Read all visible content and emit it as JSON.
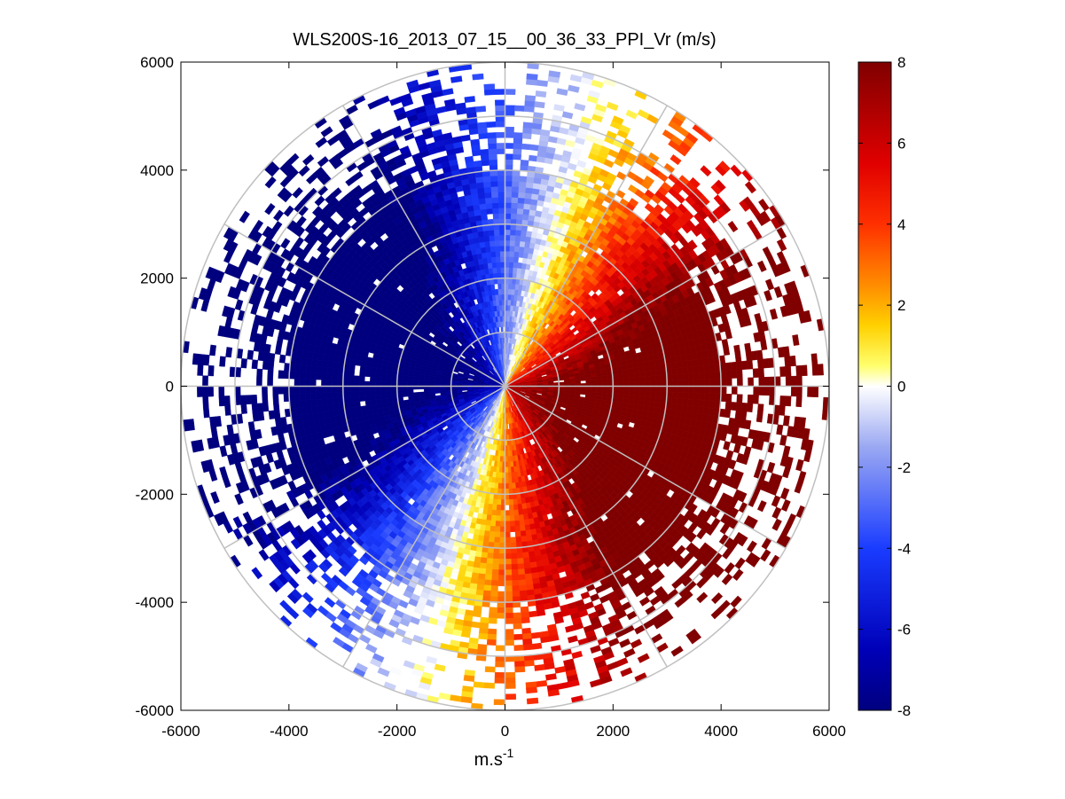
{
  "chart_data": [
    {
      "type": "heatmap",
      "subtype": "polar-ppi",
      "title": "WLS200S-16_2013_07_15__00_36_33_PPI_Vr (m/s)",
      "xlabel": "m.s",
      "xlabel_superscript": "-1",
      "ylabel": "",
      "xlim": [
        -6000,
        6000
      ],
      "ylim": [
        -6000,
        6000
      ],
      "xticks": [
        -6000,
        -4000,
        -2000,
        0,
        2000,
        4000,
        6000
      ],
      "yticks": [
        -6000,
        -4000,
        -2000,
        0,
        2000,
        4000,
        6000
      ],
      "xtick_labels": [
        "-6000",
        "-4000",
        "-2000",
        "0",
        "2000",
        "4000",
        "6000"
      ],
      "ytick_labels": [
        "-6000",
        "-4000",
        "-2000",
        "0",
        "2000",
        "4000",
        "6000"
      ],
      "polar_grid": {
        "ring_radii": [
          1000,
          2000,
          3000,
          4000,
          5000,
          6000
        ],
        "spoke_angles_deg": [
          0,
          30,
          60,
          90,
          120,
          150,
          180,
          210,
          240,
          270,
          300,
          330
        ]
      },
      "velocity_field": {
        "units": "m/s",
        "pattern": "negative (blue) radial velocity to the west/north-west, positive (red) to the east/south-east; zero line oriented roughly NNE-SSW",
        "max_abs_velocity": 8,
        "coverage_dense_radius": 4000,
        "coverage_sparse_radius": 6000
      },
      "colorbar": {
        "clim": [
          -8,
          8
        ],
        "ticks": [
          -8,
          -6,
          -4,
          -2,
          0,
          2,
          4,
          6,
          8
        ],
        "tick_labels": [
          "-8",
          "-6",
          "-4",
          "-2",
          "0",
          "2",
          "4",
          "6",
          "8"
        ],
        "colormap_stops": [
          {
            "v": -8,
            "color": "#00007f"
          },
          {
            "v": -6.5,
            "color": "#0000b8"
          },
          {
            "v": -4,
            "color": "#1a3cff"
          },
          {
            "v": -1.5,
            "color": "#9aa8f2"
          },
          {
            "v": 0,
            "color": "#ffffff"
          },
          {
            "v": 0.5,
            "color": "#ffff6e"
          },
          {
            "v": 1.5,
            "color": "#ffd000"
          },
          {
            "v": 2.5,
            "color": "#ff8c00"
          },
          {
            "v": 4,
            "color": "#ff3000"
          },
          {
            "v": 5.5,
            "color": "#e00000"
          },
          {
            "v": 8,
            "color": "#800000"
          }
        ]
      }
    }
  ]
}
